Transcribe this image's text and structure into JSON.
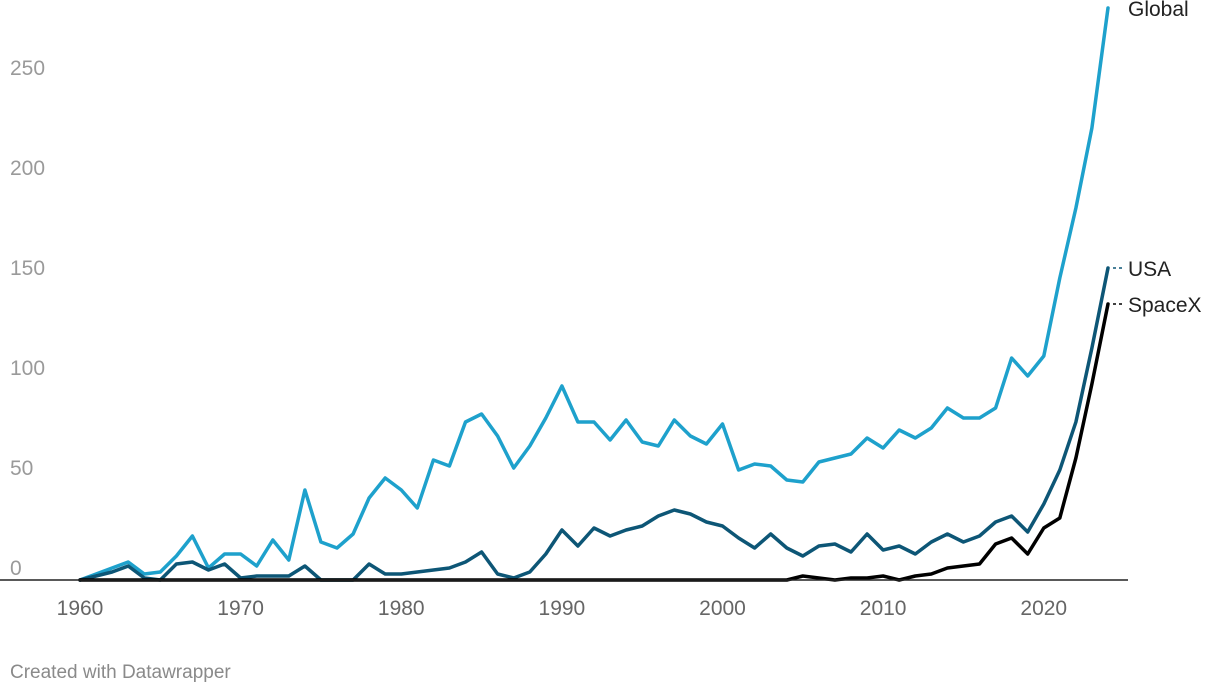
{
  "chart_data": {
    "type": "line",
    "title": "",
    "xlabel": "",
    "ylabel": "",
    "xlim": [
      1960,
      2024
    ],
    "ylim": [
      0,
      280
    ],
    "x_ticks": [
      1960,
      1970,
      1980,
      1990,
      2000,
      2010,
      2020
    ],
    "y_ticks": [
      0,
      50,
      100,
      150,
      200,
      250
    ],
    "grid": false,
    "legend": "direct labels at line ends (right)",
    "x": [
      1960,
      1961,
      1962,
      1963,
      1964,
      1965,
      1966,
      1967,
      1968,
      1969,
      1970,
      1971,
      1972,
      1973,
      1974,
      1975,
      1976,
      1977,
      1978,
      1979,
      1980,
      1981,
      1982,
      1983,
      1984,
      1985,
      1986,
      1987,
      1988,
      1989,
      1990,
      1991,
      1992,
      1993,
      1994,
      1995,
      1996,
      1997,
      1998,
      1999,
      2000,
      2001,
      2002,
      2003,
      2004,
      2005,
      2006,
      2007,
      2008,
      2009,
      2010,
      2011,
      2012,
      2013,
      2014,
      2015,
      2016,
      2017,
      2018,
      2019,
      2020,
      2021,
      2022,
      2023,
      2024
    ],
    "series": [
      {
        "name": "Global",
        "color": "#1ea1cc",
        "values": [
          0,
          3,
          6,
          9,
          3,
          4,
          12,
          22,
          6,
          13,
          13,
          7,
          20,
          10,
          45,
          19,
          16,
          23,
          41,
          51,
          45,
          36,
          60,
          57,
          79,
          83,
          72,
          56,
          67,
          81,
          97,
          79,
          79,
          70,
          80,
          69,
          67,
          80,
          72,
          68,
          78,
          55,
          58,
          57,
          50,
          49,
          59,
          61,
          63,
          71,
          66,
          75,
          71,
          76,
          86,
          81,
          81,
          86,
          111,
          102,
          112,
          151,
          186,
          226,
          286
        ]
      },
      {
        "name": "USA",
        "color": "#0d5676",
        "values": [
          0,
          2,
          4,
          7,
          1,
          0,
          8,
          9,
          5,
          8,
          1,
          2,
          2,
          2,
          7,
          0,
          0,
          0,
          8,
          3,
          3,
          4,
          5,
          6,
          9,
          14,
          3,
          1,
          4,
          13,
          25,
          17,
          26,
          22,
          25,
          27,
          32,
          35,
          33,
          29,
          27,
          21,
          16,
          23,
          16,
          12,
          17,
          18,
          14,
          23,
          15,
          17,
          13,
          19,
          23,
          19,
          22,
          29,
          32,
          24,
          38,
          55,
          79,
          116,
          156
        ]
      },
      {
        "name": "SpaceX",
        "color": "#000000",
        "values": [
          0,
          0,
          0,
          0,
          0,
          0,
          0,
          0,
          0,
          0,
          0,
          0,
          0,
          0,
          0,
          0,
          0,
          0,
          0,
          0,
          0,
          0,
          0,
          0,
          0,
          0,
          0,
          0,
          0,
          0,
          0,
          0,
          0,
          0,
          0,
          0,
          0,
          0,
          0,
          0,
          0,
          0,
          0,
          0,
          0,
          2,
          1,
          0,
          1,
          1,
          2,
          0,
          2,
          3,
          6,
          7,
          8,
          18,
          21,
          13,
          26,
          31,
          61,
          98,
          138
        ]
      }
    ]
  },
  "footer": "Created with Datawrapper"
}
